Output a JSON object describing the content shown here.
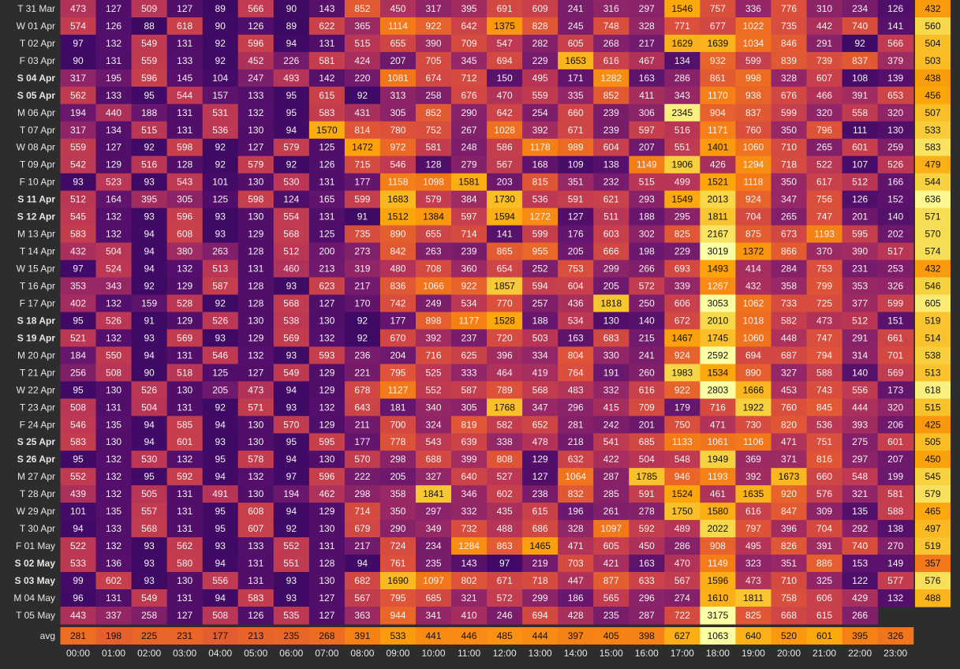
{
  "chart_data": {
    "type": "heatmap",
    "colormap": "inferno",
    "x_categories": [
      "00:00",
      "01:00",
      "02:00",
      "03:00",
      "04:00",
      "05:00",
      "06:00",
      "07:00",
      "08:00",
      "09:00",
      "10:00",
      "11:00",
      "12:00",
      "13:00",
      "14:00",
      "15:00",
      "16:00",
      "17:00",
      "18:00",
      "19:00",
      "20:00",
      "21:00",
      "22:00",
      "23:00"
    ],
    "y_categories": [
      "T 31 Mar",
      "W 01 Apr",
      "T 02 Apr",
      "F 03 Apr",
      "S 04 Apr",
      "S 05 Apr",
      "M 06 Apr",
      "T 07 Apr",
      "W 08 Apr",
      "T 09 Apr",
      "F 10 Apr",
      "S 11 Apr",
      "S 12 Apr",
      "M 13 Apr",
      "T 14 Apr",
      "W 15 Apr",
      "T 16 Apr",
      "F 17 Apr",
      "S 18 Apr",
      "S 19 Apr",
      "M 20 Apr",
      "T 21 Apr",
      "W 22 Apr",
      "T 23 Apr",
      "F 24 Apr",
      "S 25 Apr",
      "S 26 Apr",
      "M 27 Apr",
      "T 28 Apr",
      "W 29 Apr",
      "T 30 Apr",
      "F 01 May",
      "S 02 May",
      "S 03 May",
      "M 04 May",
      "T 05 May"
    ],
    "values": [
      [
        473,
        127,
        509,
        127,
        89,
        566,
        90,
        143,
        852,
        450,
        317,
        395,
        691,
        609,
        241,
        316,
        297,
        1546,
        757,
        336,
        776,
        310,
        234,
        126
      ],
      [
        574,
        126,
        88,
        618,
        90,
        126,
        89,
        622,
        365,
        1114,
        922,
        642,
        1375,
        828,
        245,
        748,
        328,
        771,
        677,
        1022,
        735,
        442,
        740,
        141
      ],
      [
        97,
        132,
        549,
        131,
        92,
        596,
        94,
        131,
        515,
        655,
        390,
        709,
        547,
        282,
        605,
        268,
        217,
        1629,
        1639,
        1034,
        846,
        291,
        92,
        566
      ],
      [
        90,
        131,
        559,
        133,
        92,
        452,
        226,
        581,
        424,
        207,
        705,
        345,
        694,
        229,
        1653,
        616,
        467,
        134,
        932,
        599,
        839,
        739,
        837,
        379
      ],
      [
        317,
        195,
        596,
        145,
        104,
        247,
        493,
        142,
        220,
        1081,
        674,
        712,
        150,
        495,
        171,
        1282,
        163,
        286,
        861,
        998,
        328,
        607,
        108,
        139
      ],
      [
        562,
        133,
        95,
        544,
        157,
        133,
        95,
        615,
        92,
        313,
        258,
        676,
        470,
        559,
        335,
        852,
        411,
        343,
        1170,
        938,
        676,
        466,
        391,
        653
      ],
      [
        194,
        440,
        188,
        131,
        531,
        132,
        95,
        583,
        431,
        305,
        852,
        290,
        642,
        254,
        660,
        239,
        306,
        2345,
        904,
        837,
        599,
        320,
        558,
        320
      ],
      [
        317,
        134,
        515,
        131,
        536,
        130,
        94,
        1570,
        814,
        780,
        752,
        267,
        1028,
        392,
        671,
        239,
        597,
        516,
        1171,
        760,
        350,
        796,
        111,
        130
      ],
      [
        559,
        127,
        92,
        598,
        92,
        127,
        579,
        125,
        1472,
        972,
        581,
        248,
        586,
        1178,
        989,
        604,
        207,
        551,
        1401,
        1060,
        710,
        265,
        601,
        259
      ],
      [
        542,
        129,
        516,
        128,
        92,
        579,
        92,
        126,
        715,
        546,
        128,
        279,
        567,
        168,
        109,
        138,
        1149,
        1906,
        426,
        1294,
        718,
        522,
        107,
        526
      ],
      [
        93,
        523,
        93,
        543,
        101,
        130,
        530,
        131,
        177,
        1158,
        1098,
        1581,
        203,
        815,
        351,
        232,
        515,
        499,
        1521,
        1118,
        350,
        617,
        512,
        166
      ],
      [
        512,
        164,
        395,
        305,
        125,
        598,
        124,
        165,
        599,
        1683,
        579,
        384,
        1730,
        536,
        591,
        621,
        293,
        1549,
        2013,
        924,
        347,
        756,
        126,
        152
      ],
      [
        545,
        132,
        93,
        596,
        93,
        130,
        554,
        131,
        91,
        1512,
        1384,
        597,
        1594,
        1272,
        127,
        511,
        188,
        295,
        1811,
        704,
        265,
        747,
        201,
        140
      ],
      [
        583,
        132,
        94,
        608,
        93,
        129,
        568,
        125,
        735,
        890,
        655,
        714,
        141,
        599,
        176,
        603,
        302,
        825,
        2167,
        875,
        673,
        1193,
        595,
        202
      ],
      [
        432,
        504,
        94,
        380,
        263,
        128,
        512,
        200,
        273,
        842,
        263,
        239,
        865,
        955,
        205,
        666,
        198,
        229,
        3019,
        1372,
        866,
        370,
        390,
        517
      ],
      [
        97,
        524,
        94,
        132,
        513,
        131,
        460,
        213,
        319,
        480,
        708,
        360,
        654,
        252,
        753,
        299,
        266,
        693,
        1493,
        414,
        284,
        753,
        231,
        253
      ],
      [
        353,
        343,
        92,
        129,
        587,
        128,
        93,
        623,
        217,
        836,
        1066,
        922,
        1857,
        594,
        604,
        205,
        572,
        339,
        1267,
        432,
        358,
        799,
        353,
        326
      ],
      [
        402,
        132,
        159,
        528,
        92,
        128,
        568,
        127,
        170,
        742,
        249,
        534,
        770,
        257,
        436,
        1818,
        250,
        606,
        3053,
        1062,
        733,
        725,
        377,
        599
      ],
      [
        95,
        526,
        91,
        129,
        526,
        130,
        538,
        130,
        92,
        177,
        898,
        1177,
        1528,
        188,
        534,
        130,
        140,
        672,
        2010,
        1018,
        582,
        473,
        512,
        151
      ],
      [
        521,
        132,
        93,
        569,
        93,
        129,
        569,
        132,
        92,
        670,
        392,
        237,
        720,
        503,
        163,
        683,
        215,
        1467,
        1745,
        1060,
        448,
        747,
        291,
        661
      ],
      [
        184,
        550,
        94,
        131,
        546,
        132,
        93,
        593,
        236,
        204,
        716,
        625,
        396,
        334,
        804,
        330,
        241,
        924,
        2592,
        694,
        687,
        794,
        314,
        701
      ],
      [
        256,
        508,
        90,
        518,
        125,
        127,
        549,
        129,
        221,
        795,
        525,
        333,
        464,
        419,
        764,
        191,
        260,
        1983,
        1534,
        890,
        327,
        588,
        140,
        569
      ],
      [
        95,
        130,
        526,
        130,
        205,
        473,
        94,
        129,
        678,
        1127,
        552,
        587,
        789,
        568,
        483,
        332,
        616,
        922,
        2803,
        1666,
        453,
        743,
        556,
        173
      ],
      [
        508,
        131,
        504,
        131,
        92,
        571,
        93,
        132,
        643,
        181,
        340,
        305,
        1768,
        347,
        296,
        415,
        709,
        179,
        716,
        1922,
        760,
        845,
        444,
        320
      ],
      [
        546,
        135,
        94,
        585,
        94,
        130,
        570,
        129,
        211,
        700,
        324,
        819,
        582,
        652,
        281,
        242,
        201,
        750,
        471,
        730,
        820,
        536,
        393,
        206
      ],
      [
        583,
        130,
        94,
        601,
        93,
        130,
        95,
        595,
        177,
        778,
        543,
        639,
        338,
        478,
        218,
        541,
        685,
        1133,
        1061,
        1106,
        471,
        751,
        275,
        601
      ],
      [
        95,
        132,
        530,
        132,
        95,
        578,
        94,
        130,
        570,
        298,
        688,
        399,
        808,
        129,
        632,
        422,
        504,
        548,
        1949,
        369,
        371,
        816,
        297,
        207
      ],
      [
        552,
        132,
        95,
        592,
        94,
        132,
        97,
        596,
        222,
        205,
        327,
        640,
        527,
        127,
        1064,
        287,
        1785,
        946,
        1193,
        392,
        1673,
        660,
        548,
        199
      ],
      [
        439,
        132,
        505,
        131,
        491,
        130,
        194,
        462,
        298,
        358,
        1841,
        346,
        602,
        238,
        832,
        285,
        591,
        1524,
        461,
        1635,
        920,
        576,
        321,
        581
      ],
      [
        101,
        135,
        557,
        131,
        95,
        608,
        94,
        129,
        714,
        350,
        297,
        332,
        435,
        615,
        196,
        261,
        278,
        1750,
        1580,
        616,
        847,
        309,
        135,
        588
      ],
      [
        94,
        133,
        568,
        131,
        95,
        607,
        92,
        130,
        679,
        290,
        349,
        732,
        488,
        686,
        328,
        1097,
        592,
        489,
        2022,
        797,
        396,
        704,
        292,
        138
      ],
      [
        522,
        132,
        93,
        562,
        93,
        133,
        552,
        131,
        217,
        724,
        234,
        1284,
        863,
        1465,
        471,
        605,
        450,
        286,
        908,
        495,
        826,
        391,
        740,
        270
      ],
      [
        533,
        136,
        93,
        580,
        94,
        131,
        551,
        128,
        94,
        761,
        235,
        143,
        97,
        219,
        703,
        421,
        163,
        470,
        1149,
        323,
        351,
        886,
        153,
        149
      ],
      [
        99,
        602,
        93,
        130,
        556,
        131,
        93,
        130,
        682,
        1690,
        1097,
        802,
        671,
        718,
        447,
        877,
        633,
        567,
        1596,
        473,
        710,
        325,
        122,
        577
      ],
      [
        96,
        131,
        549,
        131,
        94,
        583,
        93,
        127,
        567,
        795,
        685,
        321,
        572,
        299,
        186,
        565,
        296,
        274,
        1610,
        1811,
        758,
        606,
        429,
        132
      ],
      [
        443,
        337,
        258,
        127,
        508,
        126,
        535,
        127,
        363,
        944,
        341,
        410,
        246,
        694,
        428,
        235,
        287,
        722,
        3175,
        825,
        668,
        615,
        266,
        null
      ]
    ],
    "row_averages": [
      432,
      560,
      504,
      503,
      438,
      456,
      507,
      533,
      583,
      479,
      544,
      636,
      571,
      570,
      574,
      432,
      546,
      605,
      519,
      514,
      538,
      513,
      618,
      515,
      425,
      505,
      450,
      545,
      579,
      465,
      497,
      519,
      357,
      576,
      488,
      null
    ],
    "avg_label": "avg",
    "column_averages": [
      281,
      198,
      225,
      231,
      177,
      213,
      235,
      268,
      391,
      533,
      441,
      446,
      485,
      444,
      397,
      405,
      398,
      627,
      1063,
      640,
      520,
      601,
      395,
      326
    ]
  }
}
